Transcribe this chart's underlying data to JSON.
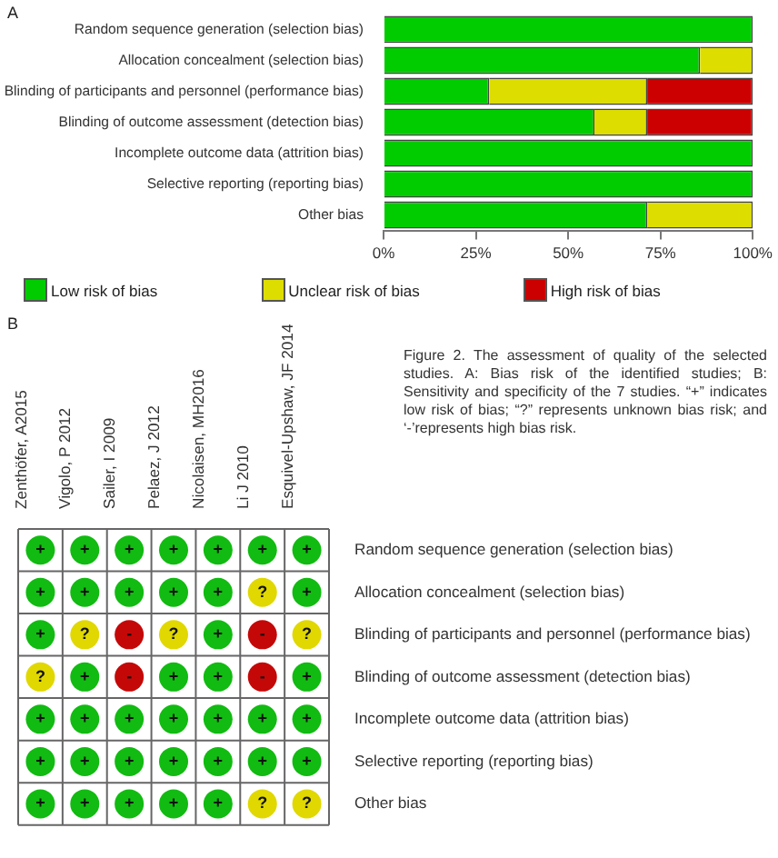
{
  "chart_data": [
    {
      "type": "bar",
      "orientation": "horizontal",
      "stacked": true,
      "categories": [
        "Random sequence generation (selection bias)",
        "Allocation concealment (selection bias)",
        "Blinding of participants and personnel (performance bias)",
        "Blinding of outcome assessment (detection bias)",
        "Incomplete outcome data (attrition bias)",
        "Selective reporting (reporting bias)",
        "Other bias"
      ],
      "series": [
        {
          "name": "Low risk of bias",
          "color": "#00cc00",
          "values": [
            100,
            85.7,
            28.6,
            57.1,
            100,
            100,
            71.4
          ]
        },
        {
          "name": "Unclear risk of bias",
          "color": "#dddd00",
          "values": [
            0,
            14.3,
            42.8,
            14.3,
            0,
            0,
            28.6
          ]
        },
        {
          "name": "High risk of bias",
          "color": "#cc0000",
          "values": [
            0,
            0,
            28.6,
            28.6,
            0,
            0,
            0
          ]
        }
      ],
      "xlim": [
        0,
        100
      ],
      "xticks": [
        {
          "value": 0,
          "label": "0%"
        },
        {
          "value": 25,
          "label": "25%"
        },
        {
          "value": 50,
          "label": "50%"
        },
        {
          "value": 75,
          "label": "75%"
        },
        {
          "value": 100,
          "label": "100%"
        }
      ],
      "grid": false,
      "legend": "bottom",
      "annotations": [
        "A"
      ]
    },
    {
      "type": "heatmap",
      "categories": [
        "Zenthöfer, A2015",
        "Vigolo, P 2012",
        "Sailer, I 2009",
        "Pelaez, J 2012",
        "Nicolaisen, MH2016",
        "Li J 2010",
        "Esquivel-Upshaw, JF 2014"
      ],
      "y_categories": [
        "Random sequence generation (selection bias)",
        "Allocation concealment (selection bias)",
        "Blinding of participants and personnel (performance bias)",
        "Blinding of outcome assessment (detection bias)",
        "Incomplete outcome data (attrition bias)",
        "Selective reporting (reporting bias)",
        "Other bias"
      ],
      "cells": [
        [
          "+",
          "+",
          "+",
          "+",
          "+",
          "+",
          "+"
        ],
        [
          "+",
          "+",
          "+",
          "+",
          "+",
          "?",
          "+"
        ],
        [
          "+",
          "?",
          "-",
          "?",
          "+",
          "-",
          "?"
        ],
        [
          "?",
          "+",
          "-",
          "+",
          "+",
          "-",
          "+"
        ],
        [
          "+",
          "+",
          "+",
          "+",
          "+",
          "+",
          "+"
        ],
        [
          "+",
          "+",
          "+",
          "+",
          "+",
          "+",
          "+"
        ],
        [
          "+",
          "+",
          "+",
          "+",
          "+",
          "?",
          "?"
        ]
      ],
      "colors": [
        [
          "#11bb11",
          "#11bb11",
          "#11bb11",
          "#11bb11",
          "#11bb11",
          "#11bb11",
          "#11bb11"
        ],
        [
          "#11bb11",
          "#11bb11",
          "#11bb11",
          "#11bb11",
          "#11bb11",
          "#e0d800",
          "#11bb11"
        ],
        [
          "#11bb11",
          "#e0d800",
          "#c40808",
          "#e0d800",
          "#11bb11",
          "#c40808",
          "#e0d800"
        ],
        [
          "#e0d800",
          "#11bb11",
          "#c40808",
          "#11bb11",
          "#11bb11",
          "#c40808",
          "#11bb11"
        ],
        [
          "#11bb11",
          "#11bb11",
          "#11bb11",
          "#11bb11",
          "#11bb11",
          "#11bb11",
          "#11bb11"
        ],
        [
          "#11bb11",
          "#11bb11",
          "#11bb11",
          "#11bb11",
          "#11bb11",
          "#11bb11",
          "#11bb11"
        ],
        [
          "#11bb11",
          "#11bb11",
          "#11bb11",
          "#11bb11",
          "#11bb11",
          "#e0d800",
          "#e0d800"
        ]
      ],
      "grid": true,
      "annotations": [
        "B",
        "Figure 2. The assessment of quality of the selected studies. A: Bias risk of the identified studies; B: Sensitivity and specificity of the 7 studies. “+” indicates low risk of bias; “?” represents unknown bias risk; and ‘-’represents high bias risk."
      ]
    }
  ]
}
